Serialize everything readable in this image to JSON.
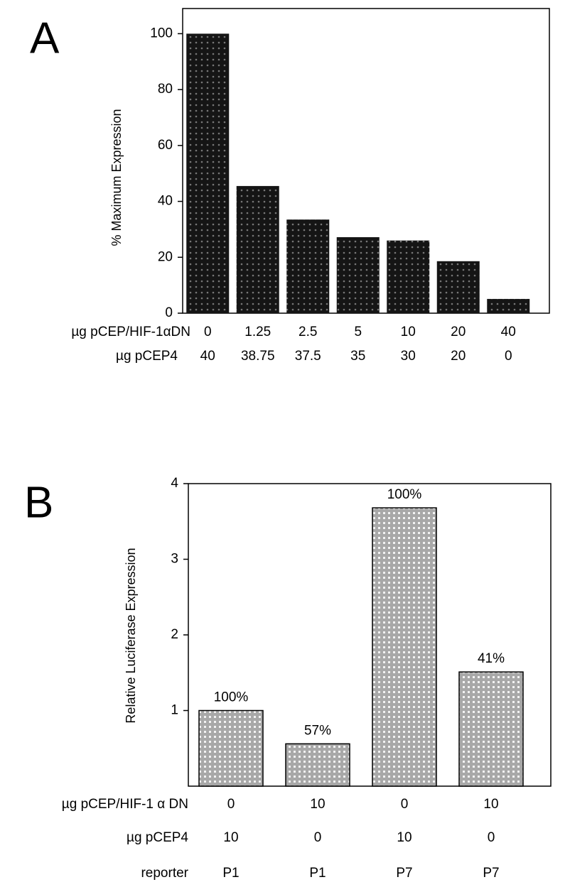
{
  "chart_data": [
    {
      "type": "bar",
      "panel": "A",
      "ylabel": "% Maximum Expression",
      "color": "#1a1a1a",
      "values": [
        100,
        45.5,
        33.5,
        27.2,
        26,
        18.6,
        5.1
      ],
      "category_rows": [
        {
          "label": "µg pCEP/HIF-1αDN",
          "categories": [
            "0",
            "1.25",
            "2.5",
            "5",
            "10",
            "20",
            "40"
          ]
        },
        {
          "label": "µg pCEP4",
          "categories": [
            "40",
            "38.75",
            "37.5",
            "35",
            "30",
            "20",
            "0"
          ]
        }
      ],
      "ylim": [
        0,
        109
      ],
      "yticks": [
        0,
        20,
        40,
        60,
        80,
        100
      ]
    },
    {
      "type": "bar",
      "panel": "B",
      "ylabel": "Relative Luciferase Expression",
      "color": "#bdbdbd",
      "values": [
        1.0,
        0.56,
        3.68,
        1.51
      ],
      "annotations": [
        "100%",
        "57%",
        "100%",
        "41%"
      ],
      "category_rows": [
        {
          "label": "µg pCEP/HIF-1 α DN",
          "categories": [
            "0",
            "10",
            "0",
            "10"
          ]
        },
        {
          "label": "µg pCEP4",
          "categories": [
            "10",
            "0",
            "10",
            "0"
          ]
        },
        {
          "label": "reporter",
          "categories": [
            "P1",
            "P1",
            "P7",
            "P7"
          ]
        }
      ],
      "ylim": [
        0,
        4
      ],
      "yticks": [
        1,
        2,
        3,
        4
      ]
    }
  ]
}
